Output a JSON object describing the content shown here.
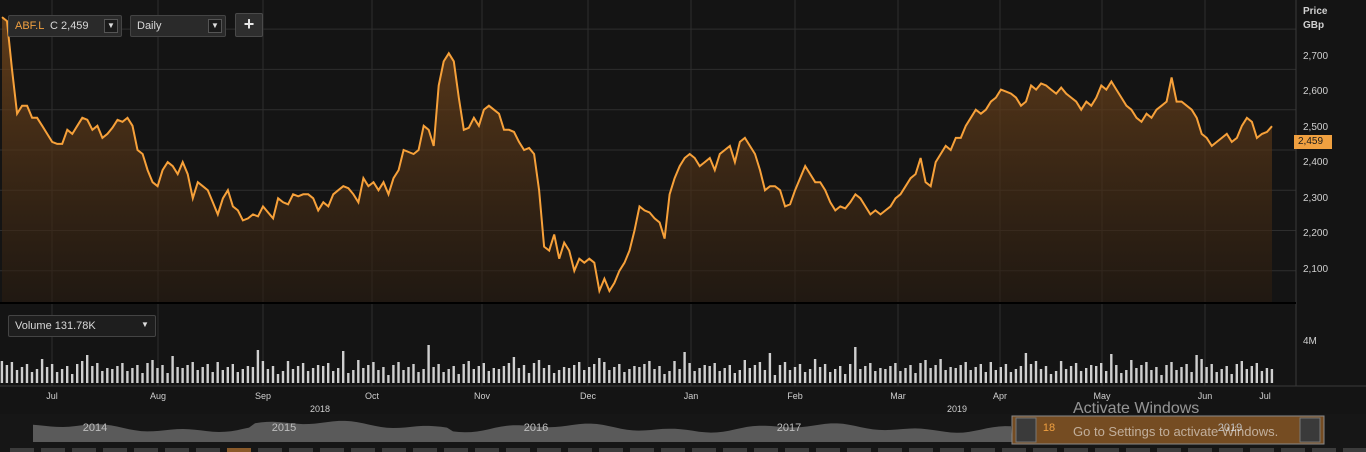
{
  "toolbar": {
    "symbol_label": "ABF.L",
    "close_label": "C 2,459",
    "interval_value": "Daily",
    "add_label": "+"
  },
  "price_axis": {
    "title_line1": "Price",
    "title_line2": "GBp",
    "ticks": [
      "2,700",
      "2,600",
      "2,500",
      "2,400",
      "2,300",
      "2,200",
      "2,100"
    ],
    "current_price_tag": "2,459"
  },
  "volume_panel": {
    "dropdown_label": "Volume 131.78K",
    "axis_tick": "4M"
  },
  "time_axis": {
    "months": [
      "Jul",
      "Aug",
      "Sep",
      "Oct",
      "Nov",
      "Dec",
      "Jan",
      "Feb",
      "Mar",
      "Apr",
      "May",
      "Jun",
      "Jul"
    ],
    "years": [
      "2018",
      "2019"
    ]
  },
  "navigator": {
    "years": [
      "2014",
      "2015",
      "2016",
      "2017",
      "2019"
    ],
    "window_left_label": "18"
  },
  "watermark": {
    "title": "Activate Windows",
    "subtitle": "Go to Settings to activate Windows."
  },
  "colors": {
    "line": "#f7a13a",
    "background": "#141414",
    "grid": "#2e2e2e",
    "price_tag": "#f0a040"
  },
  "chart_data": {
    "type": "area",
    "ylabel": "Price GBp",
    "ylim": [
      2020,
      2760
    ],
    "grid": true,
    "x_month_labels": [
      "Jul",
      "Aug",
      "Sep",
      "Oct",
      "Nov",
      "Dec",
      "Jan",
      "Feb",
      "Mar",
      "Apr",
      "May",
      "Jun",
      "Jul"
    ],
    "series": [
      {
        "values": [
          2730,
          2720,
          2600,
          2490,
          2510,
          2510,
          2480,
          2480,
          2460,
          2440,
          2420,
          2415,
          2415,
          2450,
          2440,
          2460,
          2480,
          2475,
          2450,
          2460,
          2430,
          2440,
          2455,
          2475,
          2470,
          2480,
          2460,
          2400,
          2390,
          2350,
          2320,
          2310,
          2350,
          2370,
          2360,
          2340,
          2370,
          2340,
          2280,
          2320,
          2310,
          2300,
          2270,
          2240,
          2280,
          2300,
          2260,
          2250,
          2225,
          2230,
          2240,
          2235,
          2260,
          2245,
          2230,
          2280,
          2270,
          2265,
          2290,
          2285,
          2290,
          2290,
          2280,
          2250,
          2270,
          2260,
          2290,
          2300,
          2310,
          2305,
          2290,
          2270,
          2330,
          2310,
          2320,
          2300,
          2320,
          2290,
          2330,
          2350,
          2400,
          2395,
          2390,
          2400,
          2460,
          2450,
          2410,
          2560,
          2620,
          2640,
          2620,
          2530,
          2450,
          2455,
          2480,
          2460,
          2500,
          2510,
          2500,
          2490,
          2450,
          2450,
          2445,
          2420,
          2400,
          2405,
          2390,
          2300,
          2160,
          2150,
          2190,
          2130,
          2170,
          2150,
          2100,
          2130,
          2120,
          2130,
          2120,
          2050,
          2080,
          2050,
          2070,
          2100,
          2120,
          2150,
          2200,
          2260,
          2250,
          2245,
          2230,
          2220,
          2180,
          2290,
          2330,
          2360,
          2380,
          2390,
          2380,
          2360,
          2370,
          2380,
          2350,
          2390,
          2400,
          2410,
          2370,
          2420,
          2430,
          2410,
          2390,
          2350,
          2300,
          2310,
          2310,
          2300,
          2260,
          2265,
          2300,
          2330,
          2360,
          2340,
          2320,
          2320,
          2300,
          2270,
          2250,
          2260,
          2255,
          2270,
          2290,
          2280,
          2260,
          2240,
          2250,
          2240,
          2250,
          2260,
          2280,
          2290,
          2310,
          2330,
          2340,
          2380,
          2320,
          2310,
          2370,
          2390,
          2410,
          2400,
          2430,
          2430,
          2460,
          2480,
          2500,
          2490,
          2500,
          2520,
          2530,
          2550,
          2545,
          2540,
          2530,
          2510,
          2520,
          2560,
          2550,
          2565,
          2560,
          2550,
          2540,
          2555,
          2540,
          2530,
          2520,
          2500,
          2520,
          2510,
          2530,
          2560,
          2550,
          2570,
          2550,
          2530,
          2510,
          2500,
          2480,
          2470,
          2490,
          2480,
          2500,
          2510,
          2520,
          2580,
          2520,
          2520,
          2510,
          2500,
          2480,
          2440,
          2430,
          2410,
          2420,
          2430,
          2440,
          2420,
          2430,
          2460,
          2480,
          2470,
          2430,
          2440,
          2445,
          2459
        ]
      }
    ]
  }
}
